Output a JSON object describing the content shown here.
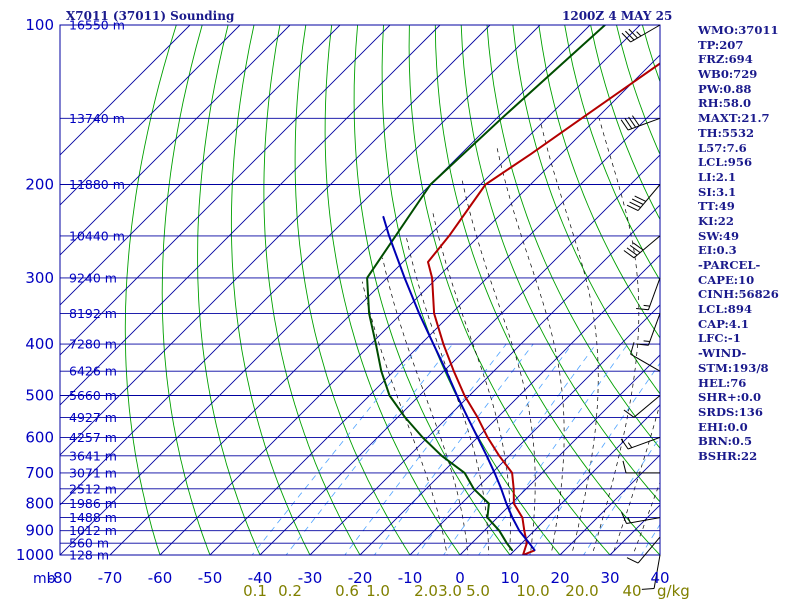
{
  "header": {
    "station_title": "X7011 (37011) Sounding",
    "valid_time": "1200Z  4 MAY 25"
  },
  "colors": {
    "background": "#ffffff",
    "frame": "#0000a0",
    "isobar": "#0000a0",
    "isotherm": "#0000a0",
    "dry_adiabat": "#00a000",
    "moist_adiabat": "#000000",
    "mixing_ratio": "#4fa3ff",
    "temperature": "#b40000",
    "dewpoint": "#004d00",
    "parcel": "#0000b4",
    "axis_text": "#0000c0",
    "mixing_text": "#808000",
    "height_text": "#0000c0",
    "index_text": "#1a1a8c",
    "wind_barb": "#000000"
  },
  "chart_data": {
    "type": "skew-t log-p sounding",
    "title": "X7011 (37011) Sounding",
    "valid_time": "1200Z  4 MAY 25",
    "pressure_axis": {
      "unit": "mb",
      "scale": "log",
      "range": [
        1000,
        100
      ],
      "ticks": [
        1000,
        900,
        800,
        700,
        600,
        500,
        400,
        300,
        200,
        100
      ]
    },
    "temperature_axis": {
      "unit": "C",
      "range": [
        -80,
        40
      ],
      "ticks": [
        -80,
        -70,
        -60,
        -50,
        -40,
        -30,
        -20,
        -10,
        0,
        10,
        20,
        30,
        40
      ]
    },
    "mixing_ratio_axis": {
      "unit": "g/kg",
      "ticks": [
        0.1,
        0.2,
        0.6,
        1.0,
        2.0,
        3.0,
        5.0,
        10.0,
        20.0,
        40
      ]
    },
    "height_labels": [
      {
        "p": 1000,
        "label": "128 m"
      },
      {
        "p": 950,
        "label": "560 m"
      },
      {
        "p": 900,
        "label": "1012 m"
      },
      {
        "p": 850,
        "label": "1488 m"
      },
      {
        "p": 800,
        "label": "1986 m"
      },
      {
        "p": 750,
        "label": "2512 m"
      },
      {
        "p": 700,
        "label": "3071 m"
      },
      {
        "p": 650,
        "label": "3641 m"
      },
      {
        "p": 600,
        "label": "4257 m"
      },
      {
        "p": 550,
        "label": "4927 m"
      },
      {
        "p": 500,
        "label": "5660 m"
      },
      {
        "p": 450,
        "label": "6426 m"
      },
      {
        "p": 400,
        "label": "7280 m"
      },
      {
        "p": 350,
        "label": "8192 m"
      },
      {
        "p": 300,
        "label": "9240 m"
      },
      {
        "p": 250,
        "label": "10440 m"
      },
      {
        "p": 200,
        "label": "11880 m"
      },
      {
        "p": 150,
        "label": "13740 m"
      },
      {
        "p": 100,
        "label": "16550 m"
      }
    ],
    "series": [
      {
        "type": "temperature",
        "points": [
          [
            980,
            14
          ],
          [
            1000,
            12.6
          ],
          [
            950,
            11
          ],
          [
            900,
            8
          ],
          [
            850,
            5
          ],
          [
            800,
            0.5
          ],
          [
            750,
            -2.5
          ],
          [
            700,
            -6
          ],
          [
            650,
            -12
          ],
          [
            600,
            -18
          ],
          [
            550,
            -24
          ],
          [
            500,
            -31
          ],
          [
            450,
            -38
          ],
          [
            400,
            -45.5
          ],
          [
            350,
            -53.5
          ],
          [
            300,
            -61
          ],
          [
            280,
            -65
          ],
          [
            250,
            -66
          ],
          [
            200,
            -69
          ],
          [
            175,
            -66
          ],
          [
            150,
            -63
          ],
          [
            100,
            -55
          ]
        ]
      },
      {
        "type": "dewpoint",
        "points": [
          [
            980,
            9.5
          ],
          [
            950,
            7
          ],
          [
            900,
            3
          ],
          [
            850,
            -2
          ],
          [
            800,
            -4.5
          ],
          [
            750,
            -10.5
          ],
          [
            700,
            -15.5
          ],
          [
            650,
            -23.5
          ],
          [
            600,
            -31
          ],
          [
            550,
            -38.5
          ],
          [
            500,
            -46
          ],
          [
            450,
            -52.5
          ],
          [
            400,
            -59
          ],
          [
            350,
            -66.5
          ],
          [
            300,
            -74
          ],
          [
            200,
            -80
          ],
          [
            150,
            -79
          ],
          [
            100,
            -77
          ]
        ]
      },
      {
        "type": "parcel",
        "points": [
          [
            980,
            14
          ],
          [
            950,
            11.5
          ],
          [
            900,
            7
          ],
          [
            850,
            3
          ],
          [
            800,
            -1
          ],
          [
            750,
            -5
          ],
          [
            700,
            -9.5
          ],
          [
            650,
            -14.5
          ],
          [
            600,
            -20
          ],
          [
            550,
            -26
          ],
          [
            500,
            -32.5
          ],
          [
            450,
            -39.5
          ],
          [
            400,
            -47.5
          ],
          [
            350,
            -56.5
          ],
          [
            300,
            -66.5
          ],
          [
            250,
            -78
          ],
          [
            230,
            -83
          ]
        ]
      }
    ],
    "wind_barbs": [
      {
        "p": 1000,
        "dir": 190,
        "spd": 10
      },
      {
        "p": 925,
        "dir": 220,
        "spd": 10
      },
      {
        "p": 850,
        "dir": 260,
        "spd": 15
      },
      {
        "p": 700,
        "dir": 270,
        "spd": 10
      },
      {
        "p": 600,
        "dir": 250,
        "spd": 15
      },
      {
        "p": 500,
        "dir": 230,
        "spd": 10
      },
      {
        "p": 450,
        "dir": 300,
        "spd": 10
      },
      {
        "p": 350,
        "dir": 200,
        "spd": 15
      },
      {
        "p": 300,
        "dir": 200,
        "spd": 15
      },
      {
        "p": 250,
        "dir": 230,
        "spd": 40
      },
      {
        "p": 200,
        "dir": 220,
        "spd": 40
      },
      {
        "p": 150,
        "dir": 250,
        "spd": 40
      },
      {
        "p": 100,
        "dir": 240,
        "spd": 35
      }
    ],
    "grid": true
  },
  "indices": [
    "WMO:37011",
    "TP:207",
    "FRZ:694",
    "WB0:729",
    "PW:0.88",
    "RH:58.0",
    "MAXT:21.7",
    "TH:5532",
    "L57:7.6",
    "LCL:956",
    "LI:2.1",
    "SI:3.1",
    "TT:49",
    "KI:22",
    "SW:49",
    "EI:0.3",
    "-PARCEL-",
    "CAPE:10",
    "CINH:56826",
    "LCL:894",
    "CAP:4.1",
    "LFC:-1",
    "-WIND-",
    "STM:193/8",
    "HEL:76",
    "SHR+:0.0",
    "SRDS:136",
    "EHI:0.0",
    "BRN:0.5",
    "BSHR:22"
  ]
}
